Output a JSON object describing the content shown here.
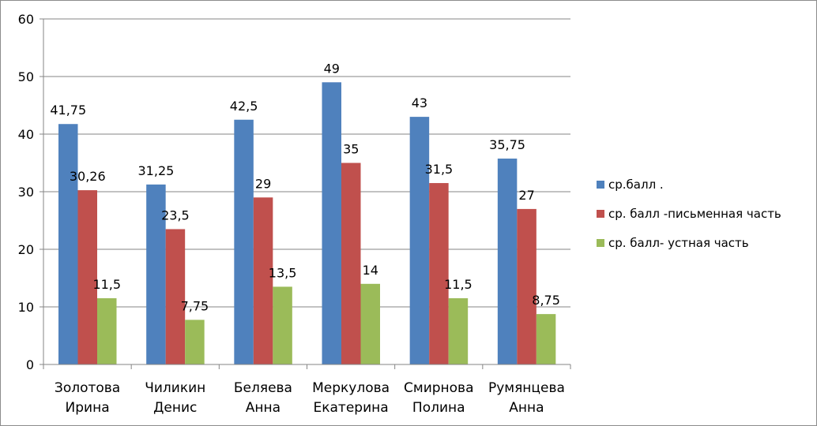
{
  "chart_data": {
    "type": "bar",
    "categories": [
      [
        "Золотова",
        "Ирина"
      ],
      [
        "Чиликин",
        "Денис"
      ],
      [
        "Беляева",
        "Анна"
      ],
      [
        "Меркулова",
        "Екатерина"
      ],
      [
        "Смирнова",
        "Полина"
      ],
      [
        "Румянцева",
        "Анна"
      ]
    ],
    "series": [
      {
        "name": "ср.балл  .",
        "color": "#4f81bd",
        "values": [
          41.75,
          31.25,
          42.5,
          49,
          43,
          35.75
        ],
        "labels": [
          "41,75",
          "31,25",
          "42,5",
          "49",
          "43",
          "35,75"
        ]
      },
      {
        "name": "ср. балл -письменная часть",
        "color": "#c0504d",
        "values": [
          30.26,
          23.5,
          29,
          35,
          31.5,
          27
        ],
        "labels": [
          "30,26",
          "23,5",
          "29",
          "35",
          "31,5",
          "27"
        ]
      },
      {
        "name": "ср. балл- устная часть",
        "color": "#9bbb59",
        "values": [
          11.5,
          7.75,
          13.5,
          14,
          11.5,
          8.75
        ],
        "labels": [
          "11,5",
          "7,75",
          "13,5",
          "14",
          "11,5",
          "8,75"
        ]
      }
    ],
    "ylim": [
      0,
      60
    ],
    "yticks": [
      0,
      10,
      20,
      30,
      40,
      50,
      60
    ],
    "grid": true,
    "legend_position": "right"
  }
}
